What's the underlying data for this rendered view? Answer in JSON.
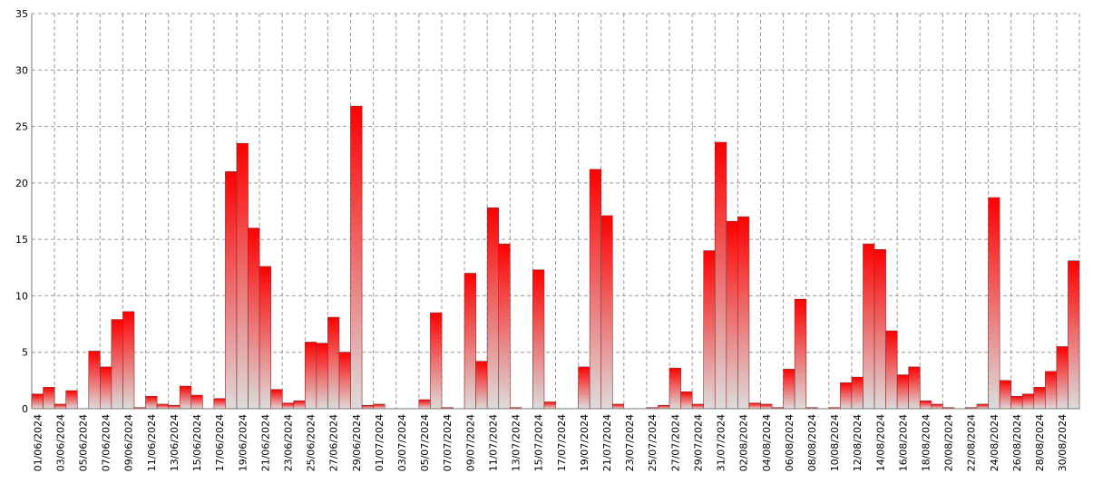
{
  "chart_data": {
    "type": "bar",
    "categories": [
      "01/06/2024",
      null,
      "03/06/2024",
      null,
      "05/06/2024",
      null,
      "07/06/2024",
      null,
      "09/06/2024",
      null,
      "11/06/2024",
      null,
      "13/06/2024",
      null,
      "15/06/2024",
      null,
      "17/06/2024",
      null,
      "19/06/2024",
      null,
      "21/06/2024",
      null,
      "23/06/2024",
      null,
      "25/06/2024",
      null,
      "27/06/2024",
      null,
      "29/06/2024",
      null,
      "01/07/2024",
      null,
      "03/07/2024",
      null,
      "05/07/2024",
      null,
      "07/07/2024",
      null,
      "09/07/2024",
      null,
      "11/07/2024",
      null,
      "13/07/2024",
      null,
      "15/07/2024",
      null,
      "17/07/2024",
      null,
      "19/07/2024",
      null,
      "21/07/2024",
      null,
      "23/07/2024",
      null,
      "25/07/2024",
      null,
      "27/07/2024",
      null,
      "29/07/2024",
      null,
      "31/07/2024",
      null,
      "02/08/2024",
      null,
      "04/08/2024",
      null,
      "06/08/2024",
      null,
      "08/08/2024",
      null,
      "10/08/2024",
      null,
      "12/08/2024",
      null,
      "14/08/2024",
      null,
      "16/08/2024",
      null,
      "18/08/2024",
      null,
      "20/08/2024",
      null,
      "22/08/2024",
      null,
      "24/08/2024",
      null,
      "26/08/2024",
      null,
      "28/08/2024",
      null,
      "30/08/2024",
      null
    ],
    "values": [
      1.3,
      1.9,
      0.4,
      1.6,
      0,
      5.1,
      3.7,
      7.9,
      8.6,
      0.1,
      1.1,
      0.4,
      0.3,
      2.0,
      1.2,
      0,
      0.9,
      21.0,
      23.5,
      16.0,
      12.6,
      1.7,
      0.5,
      0.7,
      5.9,
      5.8,
      8.1,
      5.0,
      26.8,
      0.3,
      0.4,
      0,
      0,
      0,
      0.8,
      8.5,
      0.1,
      0,
      12.0,
      4.2,
      17.8,
      14.6,
      0.1,
      0,
      12.3,
      0.6,
      0,
      0,
      3.7,
      21.2,
      17.1,
      0.4,
      0,
      0,
      0.1,
      0.3,
      3.6,
      1.5,
      0.4,
      14.0,
      23.6,
      16.6,
      17.0,
      0.5,
      0.4,
      0.1,
      3.5,
      9.7,
      0.1,
      0,
      0.1,
      2.3,
      2.8,
      14.6,
      14.1,
      6.9,
      3.0,
      3.7,
      0.7,
      0.4,
      0.1,
      0,
      0.1,
      0.4,
      18.7,
      2.5,
      1.1,
      1.3,
      1.9,
      3.3,
      5.5,
      13.1
    ],
    "color": "#ff0000",
    "ylim": [
      0,
      35
    ],
    "yticks": [
      0,
      5,
      10,
      15,
      20,
      25,
      30,
      35
    ],
    "grid": true
  }
}
